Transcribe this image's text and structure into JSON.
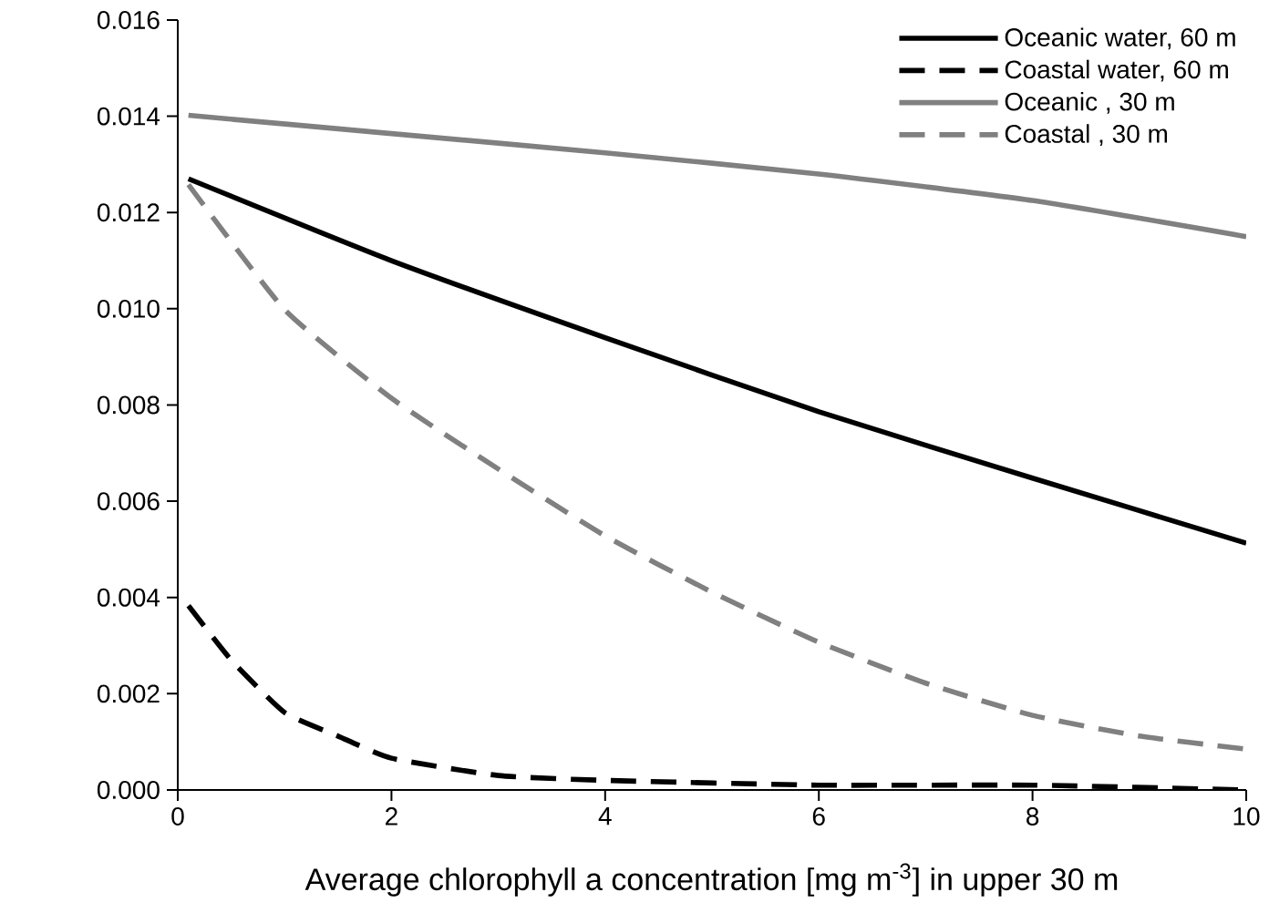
{
  "chart_data": {
    "type": "line",
    "xlabel": "Average chlorophyll a concentration [mg m$^{-3}$] in upper 30 m",
    "xlim": [
      0,
      10
    ],
    "xticks": [
      0,
      2,
      4,
      6,
      8,
      10
    ],
    "ylim": [
      0,
      0.016
    ],
    "yticks": [
      {
        "value": 0,
        "label": "0.000"
      },
      {
        "value": 0.002,
        "label": "0.002"
      },
      {
        "value": 0.004,
        "label": "0.004"
      },
      {
        "value": 0.006,
        "label": "0.006"
      },
      {
        "value": 0.008,
        "label": "0.008"
      },
      {
        "value": 0.01,
        "label": "0.010"
      },
      {
        "value": 0.012,
        "label": "0.012"
      },
      {
        "value": 0.014,
        "label": "0.014"
      },
      {
        "value": 0.016,
        "label": "0.016"
      }
    ],
    "legend": "top right",
    "marker": "none",
    "series": [
      {
        "name": "Oceanic water, 60 m",
        "color": "#000000",
        "line_style": "solid",
        "x": [
          0.1,
          2,
          4,
          6,
          8,
          10
        ],
        "values": [
          0.0127,
          0.011,
          0.0094,
          0.00786,
          0.00648,
          0.00513
        ]
      },
      {
        "name": "Coastal water, 60 m",
        "color": "#000000",
        "line_style": "dashed",
        "x": [
          0.1,
          0.5,
          1,
          1.5,
          2,
          3,
          4,
          6,
          8,
          10
        ],
        "values": [
          0.00383,
          0.0027,
          0.00161,
          0.00112,
          0.00066,
          0.0003,
          0.0002,
          0.0001,
          0.0001,
          0.0
        ]
      },
      {
        "name": "Oceanic , 30 m",
        "color": "#808080",
        "line_style": "solid",
        "x": [
          0.1,
          2,
          4,
          6,
          8,
          10
        ],
        "values": [
          0.01402,
          0.01364,
          0.01324,
          0.0128,
          0.01225,
          0.0115
        ]
      },
      {
        "name": "Coastal , 30 m",
        "color": "#808080",
        "line_style": "dashed",
        "x": [
          0.1,
          1,
          2,
          3,
          4,
          5,
          6,
          7,
          8,
          9,
          10
        ],
        "values": [
          0.01258,
          0.00998,
          0.00814,
          0.00667,
          0.00528,
          0.00411,
          0.00307,
          0.00222,
          0.00155,
          0.00112,
          0.00085
        ]
      }
    ]
  }
}
